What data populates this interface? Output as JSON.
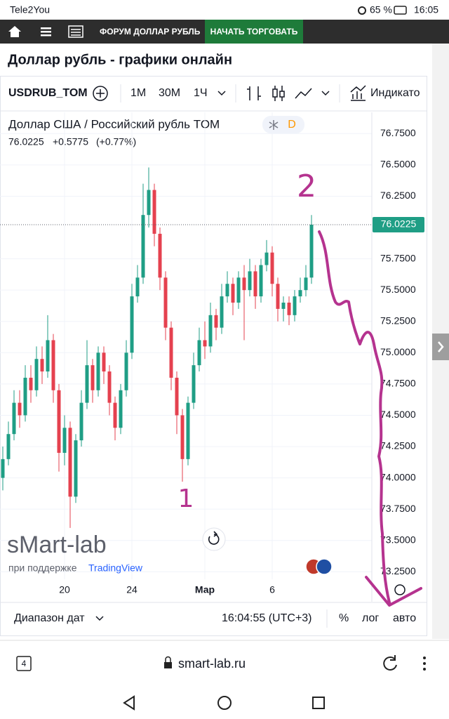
{
  "status_bar": {
    "carrier": "Tele2You",
    "battery": "65 %",
    "time": "16:05"
  },
  "nav": {
    "forum": "ФОРУМ ДОЛЛАР РУБЛЬ",
    "trade": "НАЧАТЬ ТОРГОВАТЬ"
  },
  "page_title": "Доллар рубль - графики онлайн",
  "toolbar": {
    "symbol": "USDRUB_TOM",
    "intervals": [
      "1М",
      "30М",
      "1Ч"
    ],
    "indicators": "Индикато"
  },
  "chart_data": {
    "type": "candlestick",
    "title": "Доллар США / Российский рубль TOM",
    "badge": "D",
    "quote": {
      "price": 76.0225,
      "change": "+0.5775",
      "change_pct": "(+0.77%)"
    },
    "categories": [
      null,
      null,
      null,
      null,
      null,
      null,
      null,
      null,
      null,
      null,
      null,
      "20",
      null,
      null,
      null,
      null,
      null,
      null,
      null,
      null,
      null,
      null,
      null,
      "24",
      null,
      null,
      null,
      null,
      null,
      null,
      null,
      null,
      null,
      null,
      null,
      null,
      "Мар",
      null,
      null,
      null,
      null,
      null,
      null,
      null,
      null,
      null,
      null,
      null,
      "6",
      null,
      null,
      null,
      null,
      null,
      null,
      null
    ],
    "open": [
      74.0,
      74.15,
      74.35,
      74.6,
      74.5,
      74.8,
      74.7,
      74.95,
      74.85,
      75.1,
      74.7,
      74.2,
      74.4,
      73.85,
      74.3,
      74.6,
      74.9,
      74.7,
      75.0,
      74.85,
      74.6,
      74.4,
      74.7,
      75.0,
      75.45,
      75.6,
      76.1,
      76.3,
      75.95,
      75.6,
      75.2,
      74.8,
      74.5,
      74.15,
      74.6,
      74.9,
      75.1,
      75.05,
      75.3,
      75.2,
      75.45,
      75.55,
      75.4,
      75.6,
      75.5,
      75.65,
      75.45,
      75.7,
      75.8,
      75.55,
      75.35,
      75.4,
      75.3,
      75.45,
      75.5,
      75.6
    ],
    "high": [
      74.25,
      74.45,
      74.7,
      74.7,
      74.9,
      74.9,
      75.05,
      75.05,
      75.3,
      75.15,
      74.75,
      74.5,
      74.45,
      74.35,
      74.7,
      75.1,
      74.95,
      75.05,
      75.05,
      74.9,
      74.65,
      74.75,
      75.1,
      75.55,
      75.7,
      76.35,
      76.48,
      76.35,
      76.0,
      75.65,
      75.25,
      74.85,
      74.55,
      74.65,
      75.0,
      75.2,
      75.25,
      75.4,
      75.35,
      75.55,
      75.65,
      75.6,
      75.65,
      75.7,
      75.75,
      75.7,
      75.75,
      75.9,
      75.85,
      75.6,
      75.45,
      75.45,
      75.5,
      75.6,
      75.7,
      76.1
    ],
    "low": [
      73.9,
      74.1,
      74.3,
      74.4,
      74.45,
      74.6,
      74.65,
      74.75,
      74.8,
      74.6,
      74.05,
      74.1,
      73.6,
      73.8,
      74.25,
      74.55,
      74.6,
      74.65,
      74.75,
      74.5,
      74.3,
      74.35,
      74.65,
      74.95,
      75.4,
      75.55,
      76.0,
      75.85,
      75.5,
      75.1,
      74.7,
      74.35,
      73.97,
      74.1,
      74.55,
      74.85,
      74.95,
      75.0,
      75.1,
      75.15,
      75.4,
      75.3,
      75.35,
      75.1,
      75.45,
      75.35,
      75.4,
      75.65,
      75.45,
      75.25,
      75.25,
      75.22,
      75.25,
      75.4,
      75.45,
      75.55
    ],
    "close": [
      74.15,
      74.35,
      74.6,
      74.5,
      74.8,
      74.7,
      74.95,
      74.85,
      75.1,
      74.7,
      74.2,
      74.4,
      73.85,
      74.3,
      74.6,
      74.9,
      74.7,
      75.0,
      74.85,
      74.6,
      74.4,
      74.7,
      75.0,
      75.45,
      75.6,
      76.1,
      76.3,
      75.95,
      75.6,
      75.2,
      74.8,
      74.5,
      74.15,
      74.6,
      74.9,
      75.1,
      75.05,
      75.3,
      75.2,
      75.45,
      75.55,
      75.4,
      75.6,
      75.5,
      75.65,
      75.45,
      75.7,
      75.8,
      75.55,
      75.35,
      75.4,
      75.3,
      75.45,
      75.5,
      75.6,
      76.0225
    ],
    "up_color": "#1f9e85",
    "down_color": "#e5414f",
    "ylim": [
      73.19,
      76.92
    ],
    "yticks": [
      {
        "value": 73.25,
        "label": "73.2500"
      },
      {
        "value": 73.5,
        "label": "73.5000"
      },
      {
        "value": 73.75,
        "label": "73.7500"
      },
      {
        "value": 74,
        "label": "74.0000"
      },
      {
        "value": 74.25,
        "label": "74.2500"
      },
      {
        "value": 74.5,
        "label": "74.5000"
      },
      {
        "value": 74.75,
        "label": "74.7500"
      },
      {
        "value": 75,
        "label": "75.0000"
      },
      {
        "value": 75.25,
        "label": "75.2500"
      },
      {
        "value": 75.5,
        "label": "75.5000"
      },
      {
        "value": 75.75,
        "label": "75.7500"
      },
      {
        "value": 76.25,
        "label": "76.2500"
      },
      {
        "value": 76.5,
        "label": "76.5000"
      },
      {
        "value": 76.75,
        "label": "76.7500"
      }
    ],
    "grid": true,
    "annotations": [
      "1",
      "2"
    ],
    "watermark": "sMart-lab",
    "credit": "при поддержке",
    "credit_brand": "TradingView"
  },
  "bottom_bar": {
    "range": "Диапазон дат",
    "time": "16:04:55 (UTC+3)",
    "percent": "%",
    "log": "лог",
    "auto": "авто"
  },
  "browser": {
    "tabs": "4",
    "url": "smart-lab.ru"
  }
}
